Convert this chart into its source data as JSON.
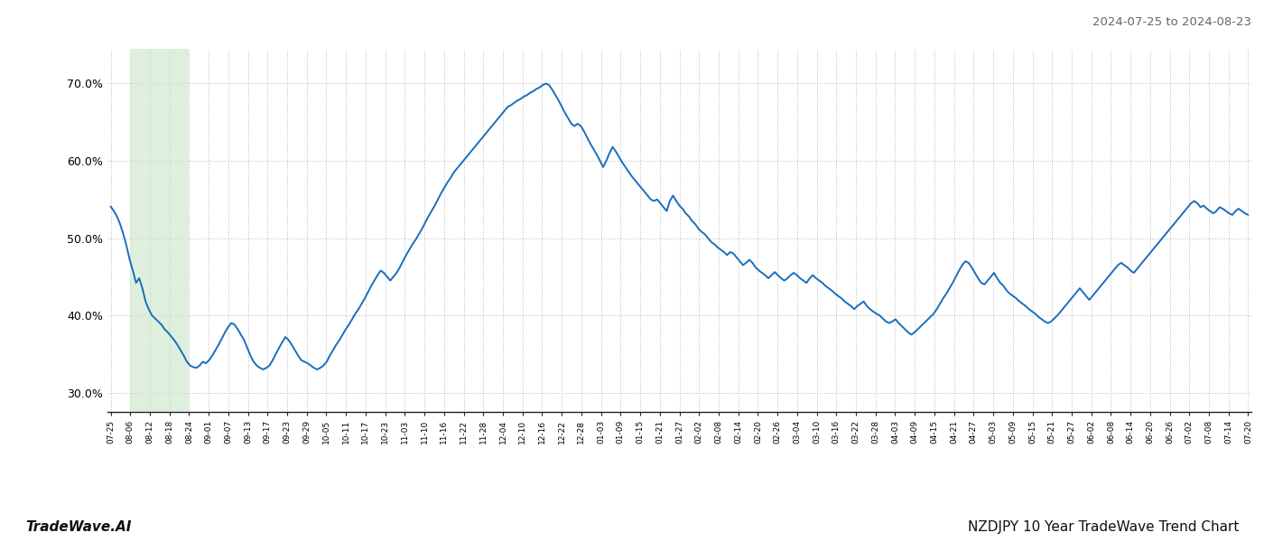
{
  "title_right": "2024-07-25 to 2024-08-23",
  "footer_left": "TradeWave.AI",
  "footer_right": "NZDJPY 10 Year TradeWave Trend Chart",
  "ylim": [
    0.275,
    0.745
  ],
  "yticks": [
    0.3,
    0.4,
    0.5,
    0.6,
    0.7
  ],
  "line_color": "#1a6ebd",
  "line_width": 1.4,
  "highlight_color": "#cde8cc",
  "highlight_alpha": 0.65,
  "bg_color": "#ffffff",
  "grid_color": "#bbbbbb",
  "grid_style": ":",
  "x_labels": [
    "07-25",
    "08-06",
    "08-12",
    "08-18",
    "08-24",
    "09-01",
    "09-07",
    "09-13",
    "09-17",
    "09-23",
    "09-29",
    "10-05",
    "10-11",
    "10-17",
    "10-23",
    "11-03",
    "11-10",
    "11-16",
    "11-22",
    "11-28",
    "12-04",
    "12-10",
    "12-16",
    "12-22",
    "12-28",
    "01-03",
    "01-09",
    "01-15",
    "01-21",
    "01-27",
    "02-02",
    "02-08",
    "02-14",
    "02-20",
    "02-26",
    "03-04",
    "03-10",
    "03-16",
    "03-22",
    "03-28",
    "04-03",
    "04-09",
    "04-15",
    "04-21",
    "04-27",
    "05-03",
    "05-09",
    "05-15",
    "05-21",
    "05-27",
    "06-02",
    "06-08",
    "06-14",
    "06-20",
    "06-26",
    "07-02",
    "07-08",
    "07-14",
    "07-20"
  ],
  "y_values": [
    0.541,
    0.535,
    0.528,
    0.518,
    0.505,
    0.49,
    0.472,
    0.458,
    0.442,
    0.448,
    0.435,
    0.418,
    0.408,
    0.4,
    0.396,
    0.392,
    0.388,
    0.382,
    0.378,
    0.373,
    0.368,
    0.362,
    0.355,
    0.348,
    0.34,
    0.335,
    0.333,
    0.332,
    0.335,
    0.34,
    0.338,
    0.342,
    0.348,
    0.355,
    0.362,
    0.37,
    0.378,
    0.385,
    0.39,
    0.388,
    0.382,
    0.375,
    0.368,
    0.358,
    0.348,
    0.34,
    0.335,
    0.332,
    0.33,
    0.332,
    0.335,
    0.342,
    0.35,
    0.358,
    0.365,
    0.372,
    0.368,
    0.362,
    0.355,
    0.348,
    0.342,
    0.34,
    0.338,
    0.335,
    0.332,
    0.33,
    0.332,
    0.335,
    0.34,
    0.348,
    0.355,
    0.362,
    0.368,
    0.375,
    0.382,
    0.388,
    0.395,
    0.402,
    0.408,
    0.415,
    0.422,
    0.43,
    0.438,
    0.445,
    0.452,
    0.458,
    0.455,
    0.45,
    0.445,
    0.45,
    0.455,
    0.462,
    0.47,
    0.478,
    0.485,
    0.492,
    0.498,
    0.505,
    0.512,
    0.52,
    0.528,
    0.535,
    0.542,
    0.55,
    0.558,
    0.565,
    0.572,
    0.578,
    0.585,
    0.59,
    0.595,
    0.6,
    0.605,
    0.61,
    0.615,
    0.62,
    0.625,
    0.63,
    0.635,
    0.64,
    0.645,
    0.65,
    0.655,
    0.66,
    0.665,
    0.67,
    0.672,
    0.675,
    0.678,
    0.68,
    0.683,
    0.685,
    0.688,
    0.69,
    0.693,
    0.695,
    0.698,
    0.7,
    0.698,
    0.692,
    0.685,
    0.678,
    0.67,
    0.662,
    0.655,
    0.648,
    0.645,
    0.648,
    0.645,
    0.638,
    0.63,
    0.622,
    0.615,
    0.608,
    0.6,
    0.592,
    0.6,
    0.61,
    0.618,
    0.612,
    0.605,
    0.598,
    0.592,
    0.586,
    0.58,
    0.575,
    0.57,
    0.565,
    0.56,
    0.555,
    0.55,
    0.548,
    0.55,
    0.545,
    0.54,
    0.535,
    0.548,
    0.555,
    0.548,
    0.542,
    0.538,
    0.532,
    0.528,
    0.522,
    0.518,
    0.512,
    0.508,
    0.505,
    0.5,
    0.495,
    0.492,
    0.488,
    0.485,
    0.482,
    0.478,
    0.482,
    0.48,
    0.475,
    0.47,
    0.465,
    0.468,
    0.472,
    0.468,
    0.462,
    0.458,
    0.455,
    0.452,
    0.448,
    0.452,
    0.456,
    0.452,
    0.448,
    0.445,
    0.448,
    0.452,
    0.455,
    0.452,
    0.448,
    0.445,
    0.442,
    0.448,
    0.452,
    0.448,
    0.445,
    0.442,
    0.438,
    0.435,
    0.432,
    0.428,
    0.425,
    0.422,
    0.418,
    0.415,
    0.412,
    0.408,
    0.412,
    0.415,
    0.418,
    0.412,
    0.408,
    0.405,
    0.402,
    0.4,
    0.396,
    0.392,
    0.39,
    0.392,
    0.395,
    0.39,
    0.386,
    0.382,
    0.378,
    0.375,
    0.378,
    0.382,
    0.386,
    0.39,
    0.394,
    0.398,
    0.402,
    0.408,
    0.415,
    0.422,
    0.428,
    0.435,
    0.442,
    0.45,
    0.458,
    0.465,
    0.47,
    0.468,
    0.462,
    0.455,
    0.448,
    0.442,
    0.44,
    0.445,
    0.45,
    0.455,
    0.448,
    0.442,
    0.438,
    0.432,
    0.428,
    0.425,
    0.422,
    0.418,
    0.415,
    0.412,
    0.408,
    0.405,
    0.402,
    0.398,
    0.395,
    0.392,
    0.39,
    0.392,
    0.396,
    0.4,
    0.405,
    0.41,
    0.415,
    0.42,
    0.425,
    0.43,
    0.435,
    0.43,
    0.425,
    0.42,
    0.425,
    0.43,
    0.435,
    0.44,
    0.445,
    0.45,
    0.455,
    0.46,
    0.465,
    0.468,
    0.465,
    0.462,
    0.458,
    0.455,
    0.46,
    0.465,
    0.47,
    0.475,
    0.48,
    0.485,
    0.49,
    0.495,
    0.5,
    0.505,
    0.51,
    0.515,
    0.52,
    0.525,
    0.53,
    0.535,
    0.54,
    0.545,
    0.548,
    0.545,
    0.54,
    0.542,
    0.538,
    0.535,
    0.532,
    0.535,
    0.54,
    0.538,
    0.535,
    0.532,
    0.53,
    0.535,
    0.538,
    0.535,
    0.532,
    0.53
  ]
}
